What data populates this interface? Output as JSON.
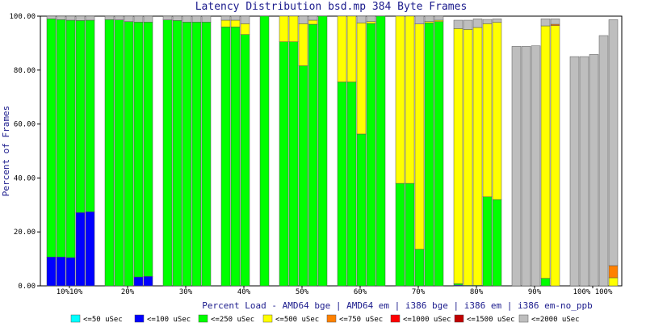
{
  "chart_data": {
    "type": "bar",
    "stacked": true,
    "title": "Latency Distribution bsd.mp 384 Byte Frames",
    "xlabel": "Percent Load - AMD64 bge | AMD64 em | i386 bge | i386 em | i386 em-no_ppb",
    "ylabel": "Percent of Frames",
    "ylim": [
      0,
      100
    ],
    "yticks": [
      "0.00",
      "20.00",
      "40.00",
      "60.00",
      "80.00",
      "100.00"
    ],
    "grid": false,
    "legend_position": "bottom",
    "groups": [
      {
        "label": "10%10%",
        "bars": [
          {
            "v": [
              0,
              10.7,
              88.3,
              0,
              0,
              0,
              0,
              1.0
            ]
          },
          {
            "v": [
              0,
              10.7,
              88.0,
              0,
              0,
              0,
              0,
              1.3
            ]
          },
          {
            "v": [
              0,
              10.5,
              88.0,
              0,
              0,
              0,
              0,
              1.5
            ]
          },
          {
            "v": [
              0,
              27.2,
              71.2,
              0,
              0,
              0,
              0,
              1.6
            ]
          },
          {
            "v": [
              0,
              27.5,
              71.0,
              0,
              0,
              0,
              0,
              1.5
            ]
          }
        ]
      },
      {
        "label": "20%",
        "bars": [
          {
            "v": [
              0,
              0,
              98.7,
              0,
              0,
              0,
              0,
              1.3
            ]
          },
          {
            "v": [
              0,
              0,
              98.6,
              0,
              0,
              0,
              0,
              1.4
            ]
          },
          {
            "v": [
              0,
              0,
              98.0,
              0,
              0,
              0,
              0,
              2.0
            ]
          },
          {
            "v": [
              0,
              3.3,
              94.5,
              0,
              0,
              0,
              0,
              2.2
            ]
          },
          {
            "v": [
              0,
              3.5,
              94.3,
              0,
              0,
              0,
              0,
              2.2
            ]
          }
        ]
      },
      {
        "label": "30%",
        "bars": [
          {
            "v": [
              0,
              0,
              98.6,
              0,
              0,
              0,
              0,
              1.4
            ]
          },
          {
            "v": [
              0,
              0,
              98.4,
              0,
              0,
              0,
              0,
              1.6
            ]
          },
          {
            "v": [
              0,
              0,
              97.8,
              0,
              0,
              0,
              0,
              2.2
            ]
          },
          {
            "v": [
              0,
              0,
              97.8,
              0,
              0,
              0,
              0,
              2.2
            ]
          },
          {
            "v": [
              0,
              0,
              97.8,
              0,
              0,
              0,
              0,
              2.2
            ]
          }
        ]
      },
      {
        "label": "40%",
        "bars": [
          {
            "v": [
              0,
              0,
              96.0,
              2.5,
              0,
              0,
              0,
              1.5
            ]
          },
          {
            "v": [
              0,
              0,
              96.0,
              2.5,
              0,
              0,
              0,
              1.5
            ]
          },
          {
            "v": [
              0,
              0,
              93.2,
              4.0,
              0,
              0,
              0,
              2.8
            ]
          },
          {
            "v": null
          },
          {
            "v": [
              0,
              0,
              100,
              0,
              0,
              0,
              0,
              0
            ]
          }
        ]
      },
      {
        "label": "50%",
        "bars": [
          {
            "v": [
              0,
              0,
              90.5,
              9.5,
              0,
              0,
              0,
              0
            ]
          },
          {
            "v": [
              0,
              0,
              90.5,
              9.5,
              0,
              0,
              0,
              0
            ]
          },
          {
            "v": [
              0,
              0,
              81.6,
              15.6,
              0,
              0,
              0,
              2.8
            ]
          },
          {
            "v": [
              0,
              0,
              97.0,
              1.5,
              0,
              0,
              0,
              1.5
            ]
          },
          {
            "v": [
              0,
              0,
              100,
              0,
              0,
              0,
              0,
              0
            ]
          }
        ]
      },
      {
        "label": "60%",
        "bars": [
          {
            "v": [
              0,
              0,
              75.6,
              24.4,
              0,
              0,
              0,
              0
            ]
          },
          {
            "v": [
              0,
              0,
              75.6,
              24.4,
              0,
              0,
              0,
              0
            ]
          },
          {
            "v": [
              0,
              0,
              56.3,
              41.2,
              0,
              0,
              0,
              2.5
            ]
          },
          {
            "v": [
              0,
              0,
              97.3,
              0.7,
              0,
              0,
              0,
              2.0
            ]
          },
          {
            "v": [
              0,
              0,
              100,
              0,
              0,
              0,
              0,
              0
            ]
          }
        ]
      },
      {
        "label": "70%",
        "bars": [
          {
            "v": [
              0,
              0,
              38.0,
              62.0,
              0,
              0,
              0,
              0
            ]
          },
          {
            "v": [
              0,
              0,
              38.0,
              62.0,
              0,
              0,
              0,
              0
            ]
          },
          {
            "v": [
              0,
              0,
              13.6,
              83.5,
              0,
              0,
              0,
              2.9
            ]
          },
          {
            "v": [
              0,
              0,
              97.5,
              0.5,
              0,
              0,
              0,
              2.0
            ]
          },
          {
            "v": [
              0,
              0,
              98.0,
              0.5,
              0,
              0,
              0,
              1.5
            ]
          }
        ]
      },
      {
        "label": "80%",
        "bars": [
          {
            "v": [
              0,
              0.3,
              0.5,
              94.6,
              0,
              0,
              0,
              3.1
            ]
          },
          {
            "v": [
              0,
              0,
              0.2,
              94.9,
              0,
              0,
              0,
              3.4
            ]
          },
          {
            "v": [
              0,
              0,
              0.2,
              95.6,
              0,
              0,
              0,
              3.2
            ]
          },
          {
            "v": [
              0,
              0,
              33.0,
              64.2,
              0,
              0,
              0,
              1.6
            ]
          },
          {
            "v": [
              0,
              0,
              32.0,
              65.7,
              0,
              0,
              0,
              1.3
            ]
          }
        ]
      },
      {
        "label": "90%",
        "bars": [
          {
            "v": [
              0,
              0,
              0,
              0,
              0,
              0,
              0,
              88.8
            ]
          },
          {
            "v": [
              0,
              0,
              0,
              0,
              0,
              0,
              0,
              88.8
            ]
          },
          {
            "v": [
              0,
              0,
              0,
              0,
              0,
              0,
              0,
              89.0
            ]
          },
          {
            "v": [
              0,
              0,
              2.8,
              93.6,
              0,
              0,
              0,
              2.6
            ]
          },
          {
            "v": [
              0,
              0,
              0,
              96.5,
              0.5,
              0,
              0,
              2.0
            ]
          }
        ]
      },
      {
        "label": "100% 100%",
        "bars": [
          {
            "v": [
              0,
              0,
              0,
              0,
              0,
              0,
              0,
              85.0
            ]
          },
          {
            "v": [
              0,
              0,
              0,
              0,
              0,
              0,
              0,
              85.0
            ]
          },
          {
            "v": [
              0,
              0,
              0,
              0,
              0,
              0,
              0,
              85.8
            ]
          },
          {
            "v": [
              0,
              0,
              0,
              0,
              0,
              0,
              0,
              92.8
            ]
          },
          {
            "v": [
              0,
              0,
              0,
              3.0,
              4.5,
              0,
              0,
              91.2
            ]
          }
        ]
      }
    ],
    "legend": [
      {
        "label": "<=50 uSec",
        "color": "#00ffff"
      },
      {
        "label": "<=100 uSec",
        "color": "#0000ff"
      },
      {
        "label": "<=250 uSec",
        "color": "#00ff00"
      },
      {
        "label": "<=500 uSec",
        "color": "#ffff00"
      },
      {
        "label": "<=750 uSec",
        "color": "#ff8000"
      },
      {
        "label": "<=1000 uSec",
        "color": "#ff0000"
      },
      {
        "label": "<=1500 uSec",
        "color": "#c00000"
      },
      {
        "label": "<=2000 uSec",
        "color": "#bebebe"
      }
    ]
  }
}
